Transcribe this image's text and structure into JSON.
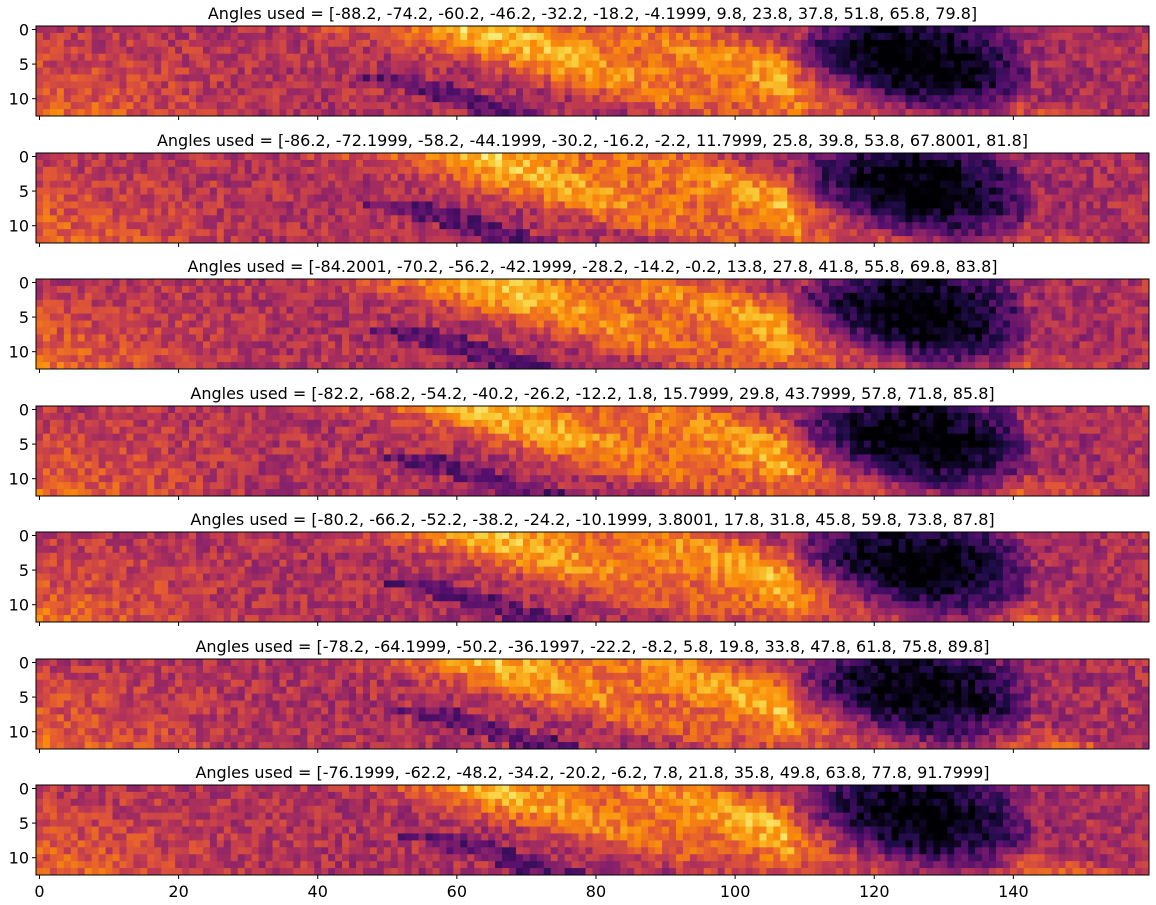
{
  "chart_data": {
    "type": "heatmap",
    "colormap": "inferno",
    "x_range": [
      0,
      160
    ],
    "y_range": [
      0,
      13
    ],
    "xticks": [
      0,
      20,
      40,
      60,
      80,
      100,
      120,
      140
    ],
    "yticks": [
      0,
      5,
      10
    ],
    "panels": [
      {
        "title": "Angles used = [-88.2, -74.2, -60.2, -46.2, -32.2, -18.2, -4.1999, 9.8, 23.8, 37.8, 51.8, 65.8, 79.8]",
        "band_shift": -2,
        "seed": 11
      },
      {
        "title": "Angles used = [-86.2, -72.1999, -58.2, -44.1999, -30.2, -16.2, -2.2, 11.7999, 25.8, 39.8, 53.8, 67.8001, 81.8]",
        "band_shift": -1,
        "seed": 23
      },
      {
        "title": "Angles used = [-84.2001, -70.2, -56.2, -42.1999, -28.2, -14.2, -0.2, 13.8, 27.8, 41.8, 55.8, 69.8, 83.8]",
        "band_shift": 0,
        "seed": 37
      },
      {
        "title": "Angles used = [-82.2, -68.2, -54.2, -40.2, -26.2, -12.2, 1.8, 15.7999, 29.8, 43.7999, 57.8, 71.8, 85.8]",
        "band_shift": 1,
        "seed": 41
      },
      {
        "title": "Angles used = [-80.2, -66.2, -52.2, -38.2, -24.2, -10.1999, 3.8001, 17.8, 31.8, 45.8, 59.8, 73.8, 87.8]",
        "band_shift": 2,
        "seed": 53
      },
      {
        "title": "Angles used = [-78.2, -64.1999, -50.2, -36.1997, -22.2, -8.2, 5.8, 19.8, 33.8, 47.8, 61.8, 75.8, 89.8]",
        "band_shift": 3,
        "seed": 67
      },
      {
        "title": "Angles used = [-76.1999, -62.2, -48.2, -34.2, -20.2, -6.2, 7.8, 21.8, 35.8, 49.8, 63.8, 77.8, 91.7999]",
        "band_shift": 4,
        "seed": 79
      }
    ]
  }
}
